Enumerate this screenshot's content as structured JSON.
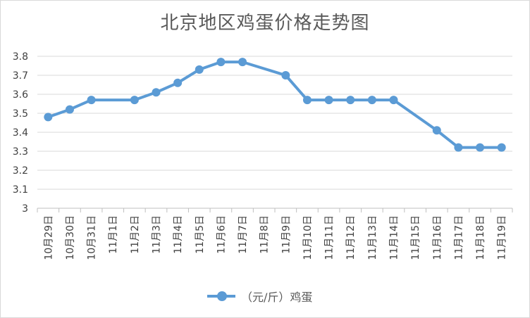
{
  "chart_data": {
    "type": "line",
    "title": "北京地区鸡蛋价格走势图",
    "categories": [
      "10月29日",
      "10月30日",
      "10月31日",
      "11月1日",
      "11月2日",
      "11月3日",
      "11月4日",
      "11月5日",
      "11月6日",
      "11月7日",
      "11月8日",
      "11月9日",
      "11月10日",
      "11月11日",
      "11月12日",
      "11月13日",
      "11月14日",
      "11月15日",
      "11月16日",
      "11月17日",
      "11月18日",
      "11月19日"
    ],
    "series": [
      {
        "name": "（元/斤）鸡蛋",
        "color": "#5b9bd5",
        "values": [
          3.48,
          3.52,
          3.57,
          null,
          3.57,
          3.61,
          3.66,
          3.73,
          3.77,
          3.77,
          null,
          3.7,
          3.57,
          3.57,
          3.57,
          3.57,
          3.57,
          null,
          3.41,
          3.32,
          3.32,
          3.32
        ]
      }
    ],
    "ylim": [
      3.0,
      3.8
    ],
    "yticks": [
      "3",
      "3.1",
      "3.2",
      "3.3",
      "3.4",
      "3.5",
      "3.6",
      "3.7",
      "3.8"
    ],
    "grid": true,
    "legend_position": "bottom"
  }
}
